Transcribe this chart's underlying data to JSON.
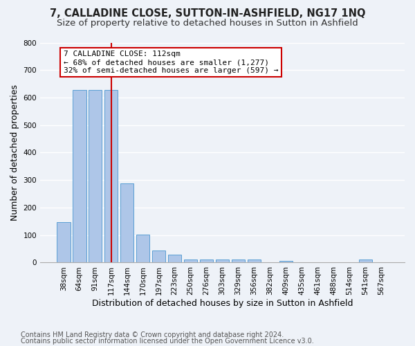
{
  "title": "7, CALLADINE CLOSE, SUTTON-IN-ASHFIELD, NG17 1NQ",
  "subtitle": "Size of property relative to detached houses in Sutton in Ashfield",
  "xlabel": "Distribution of detached houses by size in Sutton in Ashfield",
  "ylabel": "Number of detached properties",
  "footnote1": "Contains HM Land Registry data © Crown copyright and database right 2024.",
  "footnote2": "Contains public sector information licensed under the Open Government Licence v3.0.",
  "bar_labels": [
    "38sqm",
    "64sqm",
    "91sqm",
    "117sqm",
    "144sqm",
    "170sqm",
    "197sqm",
    "223sqm",
    "250sqm",
    "276sqm",
    "303sqm",
    "329sqm",
    "356sqm",
    "382sqm",
    "409sqm",
    "435sqm",
    "461sqm",
    "488sqm",
    "514sqm",
    "541sqm",
    "567sqm"
  ],
  "bar_values": [
    148,
    628,
    628,
    628,
    287,
    101,
    44,
    30,
    12,
    10,
    10,
    10,
    10,
    0,
    5,
    0,
    0,
    0,
    0,
    10,
    0
  ],
  "bar_color": "#aec6e8",
  "bar_edgecolor": "#5a9fd4",
  "vline_x": 3,
  "vline_color": "#cc0000",
  "annotation_text": "7 CALLADINE CLOSE: 112sqm\n← 68% of detached houses are smaller (1,277)\n32% of semi-detached houses are larger (597) →",
  "annotation_box_edgecolor": "#cc0000",
  "ylim": [
    0,
    800
  ],
  "yticks": [
    0,
    100,
    200,
    300,
    400,
    500,
    600,
    700,
    800
  ],
  "background_color": "#eef2f8",
  "plot_background": "#eef2f8",
  "grid_color": "#ffffff",
  "title_fontsize": 10.5,
  "subtitle_fontsize": 9.5,
  "axis_label_fontsize": 9,
  "tick_fontsize": 7.5,
  "annotation_fontsize": 8,
  "footnote_fontsize": 7
}
